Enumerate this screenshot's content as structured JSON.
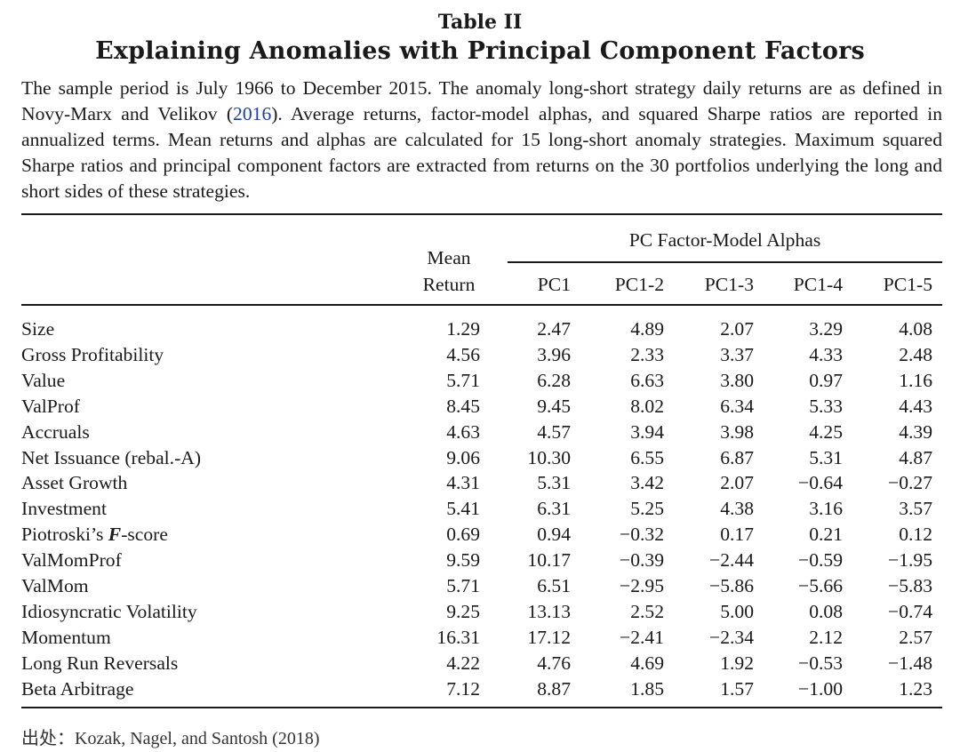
{
  "table": {
    "label": "Table II",
    "title": "Explaining Anomalies with Principal Component Factors",
    "caption_before": "The sample period is July 1966 to December 2015. The anomaly long-short strategy daily returns are as defined in Novy-Marx and Velikov (",
    "caption_cite_year": "2016",
    "caption_after": "). Average returns, factor-model alphas, and squared Sharpe ratios are reported in annualized terms. Mean returns and alphas are calculated for 15 long-short anomaly strategies. Maximum squared Sharpe ratios and principal component factors are extracted from returns on the 30 portfolios underlying the long and short sides of these strategies.",
    "group_header": "PC Factor-Model Alphas",
    "mean_header_line1": "Mean",
    "mean_header_line2": "Return",
    "columns": [
      "PC1",
      "PC1-2",
      "PC1-3",
      "PC1-4",
      "PC1-5"
    ],
    "rows": [
      {
        "label": "Size",
        "values": [
          "1.29",
          "2.47",
          "4.89",
          "2.07",
          "3.29",
          "4.08"
        ]
      },
      {
        "label": "Gross Profitability",
        "values": [
          "4.56",
          "3.96",
          "2.33",
          "3.37",
          "4.33",
          "2.48"
        ]
      },
      {
        "label": "Value",
        "values": [
          "5.71",
          "6.28",
          "6.63",
          "3.80",
          "0.97",
          "1.16"
        ]
      },
      {
        "label": "ValProf",
        "values": [
          "8.45",
          "9.45",
          "8.02",
          "6.34",
          "5.33",
          "4.43"
        ]
      },
      {
        "label": "Accruals",
        "values": [
          "4.63",
          "4.57",
          "3.94",
          "3.98",
          "4.25",
          "4.39"
        ]
      },
      {
        "label": "Net Issuance (rebal.-A)",
        "values": [
          "9.06",
          "10.30",
          "6.55",
          "6.87",
          "5.31",
          "4.87"
        ]
      },
      {
        "label": "Asset Growth",
        "values": [
          "4.31",
          "5.31",
          "3.42",
          "2.07",
          "−0.64",
          "−0.27"
        ]
      },
      {
        "label": "Investment",
        "values": [
          "5.41",
          "6.31",
          "5.25",
          "4.38",
          "3.16",
          "3.57"
        ]
      },
      {
        "label_before": "Piotroski’s ",
        "label_italic": "F",
        "label_after": "-score",
        "values": [
          "0.69",
          "0.94",
          "−0.32",
          "0.17",
          "0.21",
          "0.12"
        ]
      },
      {
        "label": "ValMomProf",
        "values": [
          "9.59",
          "10.17",
          "−0.39",
          "−2.44",
          "−0.59",
          "−1.95"
        ]
      },
      {
        "label": "ValMom",
        "values": [
          "5.71",
          "6.51",
          "−2.95",
          "−5.86",
          "−5.66",
          "−5.83"
        ]
      },
      {
        "label": "Idiosyncratic Volatility",
        "values": [
          "9.25",
          "13.13",
          "2.52",
          "5.00",
          "0.08",
          "−0.74"
        ]
      },
      {
        "label": "Momentum",
        "values": [
          "16.31",
          "17.12",
          "−2.41",
          "−2.34",
          "2.12",
          "2.57"
        ]
      },
      {
        "label": "Long Run Reversals",
        "values": [
          "4.22",
          "4.76",
          "4.69",
          "1.92",
          "−0.53",
          "−1.48"
        ]
      },
      {
        "label": "Beta Arbitrage",
        "values": [
          "7.12",
          "8.87",
          "1.85",
          "1.57",
          "−1.00",
          "1.23"
        ]
      }
    ],
    "source": "出处：Kozak, Nagel, and Santosh (2018)"
  }
}
